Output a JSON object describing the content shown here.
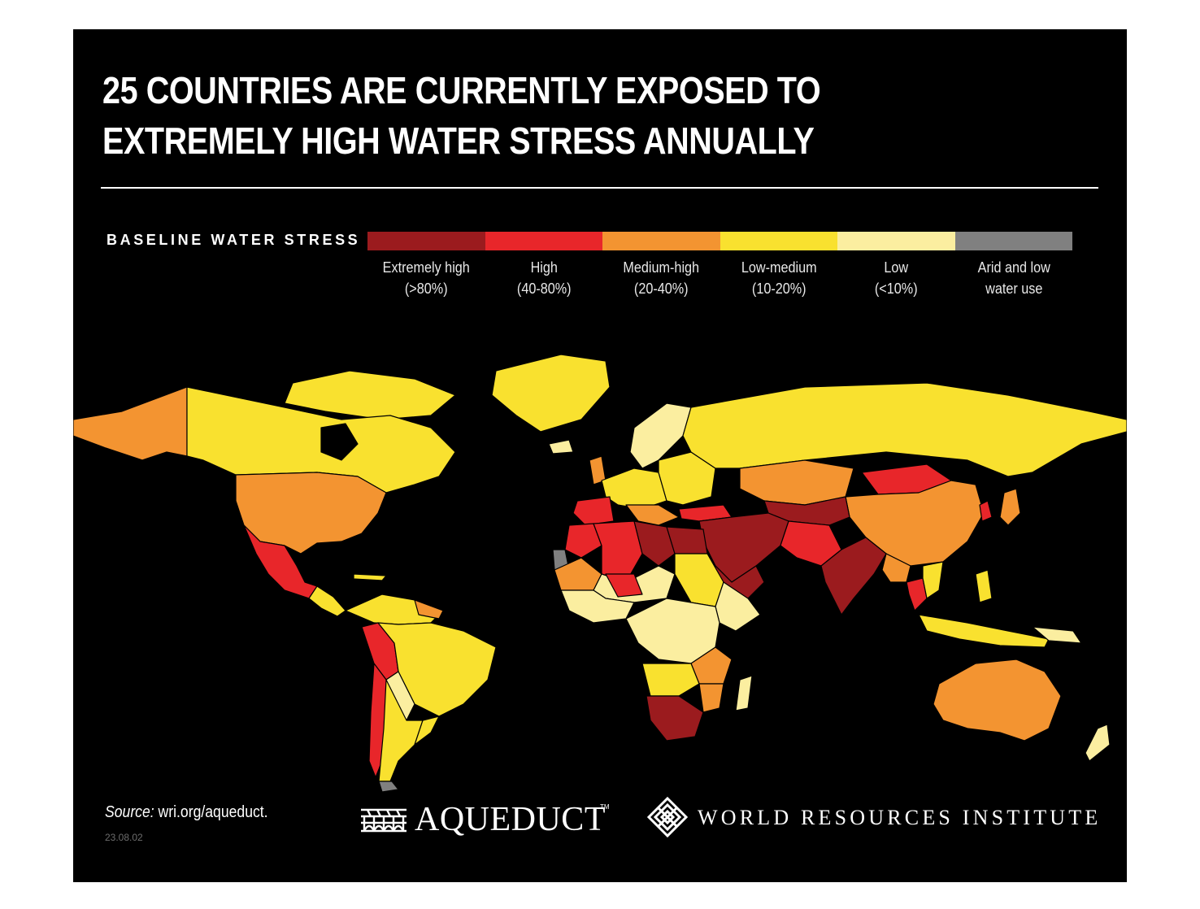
{
  "title": "25 COUNTRIES ARE CURRENTLY EXPOSED TO EXTREMELY HIGH WATER STRESS ANNUALLY",
  "legend": {
    "title": "BASELINE WATER STRESS",
    "categories": [
      {
        "label": "Extremely high",
        "range": "(>80%)",
        "color": "#9b1b1e"
      },
      {
        "label": "High",
        "range": "(40-80%)",
        "color": "#e8262a"
      },
      {
        "label": "Medium-high",
        "range": "(20-40%)",
        "color": "#f39431"
      },
      {
        "label": "Low-medium",
        "range": "(10-20%)",
        "color": "#f9e12f"
      },
      {
        "label": "Low",
        "range": "(<10%)",
        "color": "#fbeea0"
      },
      {
        "label": "Arid and low",
        "range": "water use",
        "color": "#808080"
      }
    ]
  },
  "source": {
    "prefix": "Source:",
    "text": " wri.org/aqueduct."
  },
  "date": "23.08.02",
  "logos": {
    "aqueduct": "AQUEDUCT",
    "aqueduct_tm": "TM",
    "wri": "WORLD RESOURCES INSTITUTE"
  },
  "colors": {
    "background": "#000000",
    "ocean": "#000000",
    "text": "#ffffff"
  }
}
